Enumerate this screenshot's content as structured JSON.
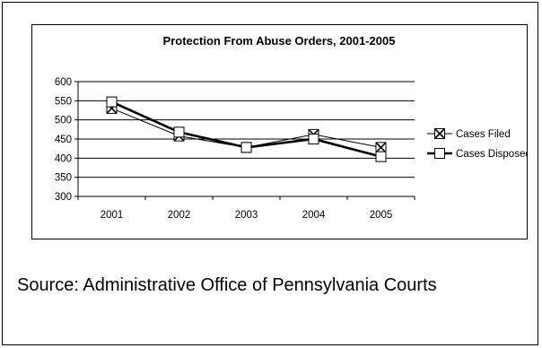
{
  "source_text": "Source: Administrative Office of Pennsylvania Courts",
  "chart_data": {
    "type": "line",
    "title": "Protection From Abuse Orders, 2001-2005",
    "xlabel": "",
    "ylabel": "",
    "categories": [
      "2001",
      "2002",
      "2003",
      "2004",
      "2005"
    ],
    "ylim": [
      300,
      600
    ],
    "yticks": [
      300,
      350,
      400,
      450,
      500,
      550,
      600
    ],
    "grid": true,
    "legend_position": "right",
    "series": [
      {
        "name": "Cases Filed",
        "values": [
          530,
          458,
          428,
          462,
          428
        ],
        "marker": "x-square",
        "color": "#000000"
      },
      {
        "name": "Cases Disposed",
        "values": [
          547,
          468,
          428,
          450,
          404
        ],
        "marker": "square",
        "color": "#000000"
      }
    ]
  }
}
